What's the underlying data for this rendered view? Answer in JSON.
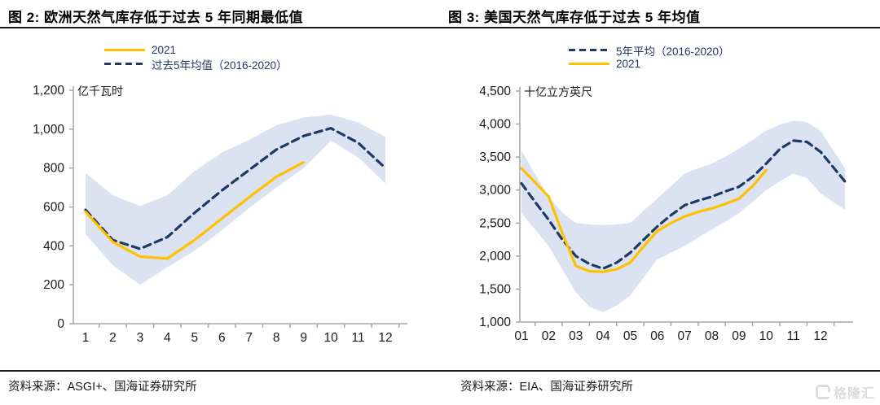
{
  "theme": {
    "navy": "#1f3864",
    "gold": "#ffc000",
    "band": "#dbe3f2",
    "axis_gray": "#a6a6a6"
  },
  "watermark": {
    "icon": "gelonghui-logo",
    "text": "格隆汇"
  },
  "chart_data": [
    {
      "type": "line",
      "title": "图 2:  欧洲天然气库存低于过去 5 年同期最低值",
      "unit_label": "亿千瓦时",
      "source": "资料来源：ASGI+、国海证券研究所",
      "legend": [
        {
          "name": "2021",
          "style": "solid",
          "color": "#ffc000"
        },
        {
          "name": "过去5年均值（2016-2020）",
          "style": "dashed",
          "color": "#1f3864"
        }
      ],
      "ylim": [
        0,
        1200
      ],
      "ytick_labels": [
        "0",
        "200",
        "400",
        "600",
        "800",
        "1,000",
        "1,200"
      ],
      "xtick_labels": [
        "1",
        "2",
        "3",
        "4",
        "5",
        "6",
        "7",
        "8",
        "9",
        "10",
        "11",
        "12"
      ],
      "band": {
        "x": [
          1,
          2,
          3,
          4,
          5,
          6,
          7,
          8,
          9,
          10,
          11,
          12
        ],
        "upper": [
          775,
          660,
          605,
          660,
          785,
          880,
          945,
          1020,
          1060,
          1075,
          1035,
          960
        ],
        "lower": [
          460,
          300,
          200,
          290,
          375,
          480,
          595,
          700,
          800,
          940,
          855,
          720
        ]
      },
      "series": [
        {
          "name": "过去5年均值（2016-2020）",
          "style": "dashed",
          "color": "#1f3864",
          "x": [
            1,
            2,
            3,
            4,
            5,
            6,
            7,
            8,
            9,
            10,
            11,
            12
          ],
          "values": [
            585,
            430,
            385,
            445,
            570,
            685,
            790,
            895,
            965,
            1005,
            930,
            800
          ]
        },
        {
          "name": "2021",
          "style": "solid",
          "color": "#ffc000",
          "x": [
            1,
            2,
            3,
            4,
            5,
            6,
            7,
            8,
            9
          ],
          "values": [
            575,
            420,
            345,
            335,
            430,
            540,
            650,
            755,
            830
          ]
        }
      ]
    },
    {
      "type": "line",
      "title": "图 3:  美国天然气库存低于过去 5 年均值",
      "unit_label": "十亿立方英尺",
      "source": "资料来源：EIA、国海证券研究所",
      "legend": [
        {
          "name": "5年平均（2016-2020）",
          "style": "dashed",
          "color": "#1f3864"
        },
        {
          "name": "2021",
          "style": "solid",
          "color": "#ffc000"
        }
      ],
      "ylim": [
        1000,
        4500
      ],
      "ytick_labels": [
        "1,000",
        "1,500",
        "2,000",
        "2,500",
        "3,000",
        "3,500",
        "4,000",
        "4,500"
      ],
      "xtick_labels": [
        "01",
        "02",
        "03",
        "04",
        "05",
        "06",
        "07",
        "08",
        "09",
        "10",
        "11",
        "12"
      ],
      "band": {
        "x": [
          1,
          1.5,
          2,
          2.5,
          3,
          3.5,
          4,
          4.5,
          5,
          5.5,
          6,
          6.5,
          7,
          7.5,
          8,
          8.5,
          9,
          9.5,
          10,
          10.5,
          11,
          11.5,
          12,
          12.9
        ],
        "upper": [
          3600,
          3240,
          2900,
          2660,
          2500,
          2480,
          2470,
          2480,
          2500,
          2690,
          2875,
          3060,
          3250,
          3330,
          3400,
          3510,
          3625,
          3760,
          3900,
          3990,
          4050,
          4030,
          3900,
          3330
        ],
        "lower": [
          2650,
          2400,
          2150,
          1800,
          1450,
          1230,
          1150,
          1250,
          1400,
          1680,
          1950,
          2050,
          2150,
          2280,
          2400,
          2520,
          2650,
          2820,
          3000,
          3130,
          3250,
          3180,
          2950,
          2700
        ]
      },
      "series": [
        {
          "name": "5年平均（2016-2020）",
          "style": "dashed",
          "color": "#1f3864",
          "x": [
            1,
            1.5,
            2,
            2.5,
            3,
            3.5,
            4,
            4.5,
            5,
            5.5,
            6,
            6.5,
            7,
            7.5,
            8,
            8.5,
            9,
            9.5,
            10,
            10.5,
            11,
            11.5,
            12,
            12.9
          ],
          "values": [
            3100,
            2820,
            2550,
            2250,
            2000,
            1880,
            1810,
            1900,
            2050,
            2250,
            2450,
            2620,
            2770,
            2840,
            2900,
            2980,
            3050,
            3200,
            3400,
            3620,
            3750,
            3730,
            3580,
            3130
          ]
        },
        {
          "name": "2021",
          "style": "solid",
          "color": "#ffc000",
          "x": [
            1,
            1.5,
            2,
            2.5,
            3,
            3.5,
            4,
            4.5,
            5,
            5.5,
            6,
            6.5,
            7,
            7.5,
            8,
            8.5,
            9,
            9.5,
            10
          ],
          "values": [
            3330,
            3120,
            2900,
            2350,
            1850,
            1770,
            1760,
            1800,
            1900,
            2150,
            2380,
            2500,
            2600,
            2670,
            2720,
            2790,
            2870,
            3060,
            3300
          ]
        }
      ]
    }
  ]
}
